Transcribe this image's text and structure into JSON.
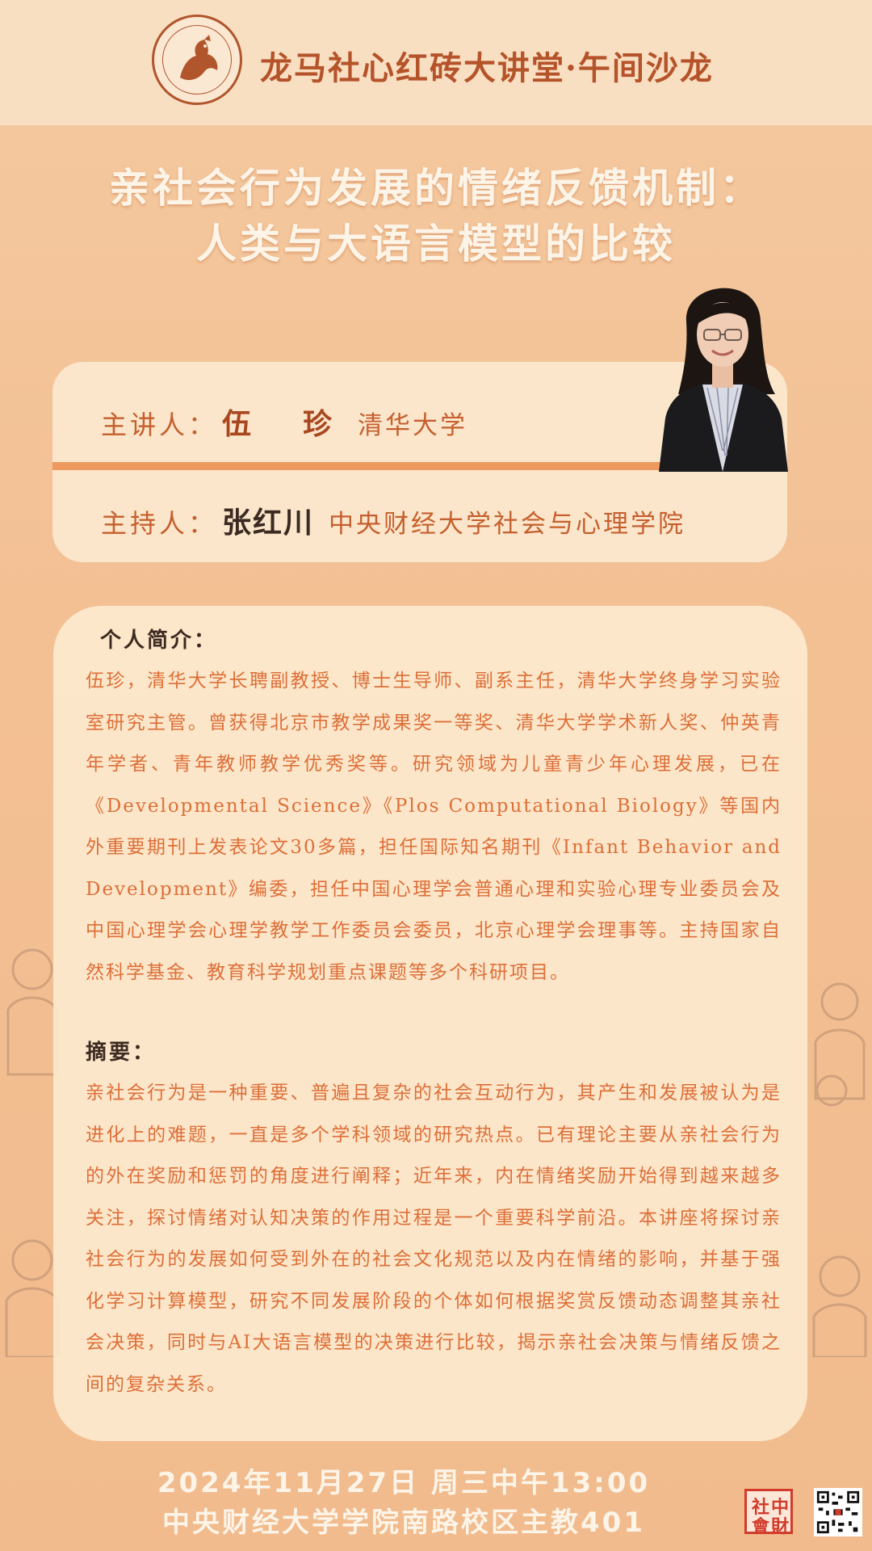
{
  "header": {
    "series_title": "龙马社心红砖大讲堂·午间沙龙"
  },
  "title": {
    "line1": "亲社会行为发展的情绪反馈机制：",
    "line2": "人类与大语言模型的比较"
  },
  "speaker": {
    "label": "主讲人：",
    "name": "伍　珍",
    "org": "清华大学"
  },
  "host": {
    "label": "主持人：",
    "name": "张红川",
    "org": "中央财经大学社会与心理学院"
  },
  "bio": {
    "heading": "个人简介：",
    "text": "伍珍，清华大学长聘副教授、博士生导师、副系主任，清华大学终身学习实验室研究主管。曾获得北京市教学成果奖一等奖、清华大学学术新人奖、仲英青年学者、青年教师教学优秀奖等。研究领域为儿童青少年心理发展，已在《Developmental Science》《Plos Computational Biology》等国内外重要期刊上发表论文30多篇，担任国际知名期刊《Infant Behavior and Development》编委，担任中国心理学会普通心理和实验心理专业委员会及中国心理学会心理学教学工作委员会委员，北京心理学会理事等。主持国家自然科学基金、教育科学规划重点课题等多个科研项目。"
  },
  "abstract": {
    "heading": "摘要：",
    "text": "亲社会行为是一种重要、普遍且复杂的社会互动行为，其产生和发展被认为是进化上的难题，一直是多个学科领域的研究热点。已有理论主要从亲社会行为的外在奖励和惩罚的角度进行阐释；近年来，内在情绪奖励开始得到越来越多关注，探讨情绪对认知决策的作用过程是一个重要科学前沿。本讲座将探讨亲社会行为的发展如何受到外在的社会文化规范以及内在情绪的影响，并基于强化学习计算模型，研究不同发展阶段的个体如何根据奖赏反馈动态调整其亲社会决策，同时与AI大语言模型的决策进行比较，揭示亲社会决策与情绪反馈之间的复杂关系。"
  },
  "event": {
    "datetime": "2024年11月27日  周三中午13:00",
    "venue": "中央财经大学学院南路校区主教401"
  },
  "colors": {
    "accent": "#b5532a",
    "body_text": "#dd6f38",
    "background": "#f3c094",
    "card": "#fbe6cb"
  }
}
